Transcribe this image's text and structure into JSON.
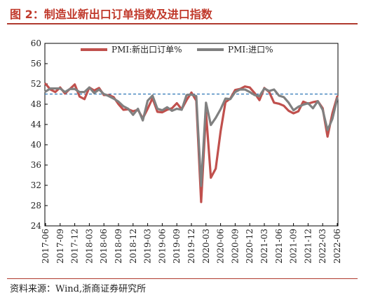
{
  "title": "图 2：制造业新出口订单指数及进口指数",
  "source": "资料来源：Wind,浙商证券研究所",
  "chart_data": {
    "type": "line",
    "title": "图 2：制造业新出口订单指数及进口指数",
    "xlabel": "",
    "ylabel": "",
    "ylim": [
      24,
      60
    ],
    "yticks": [
      24,
      28,
      32,
      36,
      40,
      44,
      48,
      52,
      56,
      60
    ],
    "x_tick_labels": [
      "2017-06",
      "2017-09",
      "2017-12",
      "2018-03",
      "2018-06",
      "2018-09",
      "2018-12",
      "2019-03",
      "2019-06",
      "2019-09",
      "2019-12",
      "2020-03",
      "2020-06",
      "2020-09",
      "2020-12",
      "2021-03",
      "2021-06",
      "2021-09",
      "2021-12",
      "2022-03",
      "2022-06"
    ],
    "x": [
      "2017-06",
      "2017-07",
      "2017-08",
      "2017-09",
      "2017-10",
      "2017-11",
      "2017-12",
      "2018-01",
      "2018-02",
      "2018-03",
      "2018-04",
      "2018-05",
      "2018-06",
      "2018-07",
      "2018-08",
      "2018-09",
      "2018-10",
      "2018-11",
      "2018-12",
      "2019-01",
      "2019-02",
      "2019-03",
      "2019-04",
      "2019-05",
      "2019-06",
      "2019-07",
      "2019-08",
      "2019-09",
      "2019-10",
      "2019-11",
      "2019-12",
      "2020-01",
      "2020-02",
      "2020-03",
      "2020-04",
      "2020-05",
      "2020-06",
      "2020-07",
      "2020-08",
      "2020-09",
      "2020-10",
      "2020-11",
      "2020-12",
      "2021-01",
      "2021-02",
      "2021-03",
      "2021-04",
      "2021-05",
      "2021-06",
      "2021-07",
      "2021-08",
      "2021-09",
      "2021-10",
      "2021-11",
      "2021-12",
      "2022-01",
      "2022-02",
      "2022-03",
      "2022-04",
      "2022-05",
      "2022-06"
    ],
    "series": [
      {
        "name": "PMI:新出口订单%",
        "color": "#c0504d",
        "values": [
          52.0,
          50.9,
          50.4,
          51.3,
          50.1,
          51.0,
          51.9,
          49.5,
          49.0,
          51.3,
          50.7,
          51.2,
          49.8,
          49.8,
          49.4,
          48.0,
          46.9,
          47.0,
          46.6,
          46.9,
          45.2,
          47.1,
          49.2,
          46.5,
          46.4,
          46.9,
          47.2,
          48.2,
          47.0,
          48.8,
          50.3,
          48.7,
          28.7,
          46.4,
          33.5,
          35.3,
          42.6,
          48.4,
          49.1,
          50.8,
          51.0,
          51.5,
          51.3,
          50.2,
          48.8,
          51.2,
          50.4,
          48.3,
          48.1,
          47.7,
          46.7,
          46.2,
          46.6,
          48.5,
          48.1,
          48.4,
          48.6,
          47.2,
          41.6,
          46.2,
          49.5
        ]
      },
      {
        "name": "PMI:进口%",
        "color": "#808080",
        "values": [
          50.5,
          51.1,
          51.1,
          51.1,
          50.4,
          51.0,
          51.0,
          50.4,
          50.4,
          51.3,
          50.2,
          50.9,
          50.0,
          49.6,
          49.1,
          48.5,
          47.6,
          47.1,
          45.9,
          47.1,
          44.8,
          48.7,
          49.7,
          47.1,
          46.8,
          47.4,
          46.7,
          47.1,
          46.9,
          49.8,
          49.9,
          49.6,
          31.9,
          48.3,
          43.9,
          45.3,
          47.0,
          49.1,
          49.0,
          50.4,
          50.9,
          50.9,
          50.4,
          49.8,
          49.6,
          51.1,
          50.6,
          50.9,
          49.7,
          49.4,
          48.3,
          46.8,
          47.5,
          47.9,
          48.2,
          47.2,
          48.6,
          46.9,
          42.9,
          45.1,
          49.2
        ]
      }
    ],
    "reference_line": 50,
    "legend_position": "top",
    "grid": false
  }
}
